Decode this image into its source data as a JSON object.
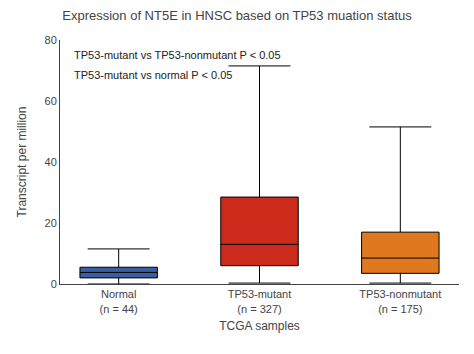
{
  "chart_data": {
    "type": "box",
    "title": "Expression of NT5E in HNSC based on TP53 muation status",
    "xlabel": "TCGA samples",
    "ylabel": "Transcript per million",
    "categories": [
      "Normal\n(n = 44)",
      "TP53-mutant\n(n = 327)",
      "TP53-nonmutant\n(n = 175)"
    ],
    "colors": [
      "#3a5fa0",
      "#cc2a1a",
      "#e07820"
    ],
    "whisker_low": [
      0.0,
      0.3,
      0.3
    ],
    "q1": [
      2.0,
      6.0,
      3.5
    ],
    "median": [
      3.8,
      13.0,
      8.5
    ],
    "q3": [
      5.5,
      28.5,
      17.0
    ],
    "whisker_high": [
      11.5,
      71.5,
      51.5
    ],
    "ylim": [
      0,
      80
    ],
    "yticks": [
      0,
      20,
      40,
      60,
      80
    ],
    "annotations": [
      "TP53-mutant vs TP53-nonmutant P < 0.05",
      "TP53-mutant vs normal P < 0.05"
    ],
    "grid": false
  }
}
